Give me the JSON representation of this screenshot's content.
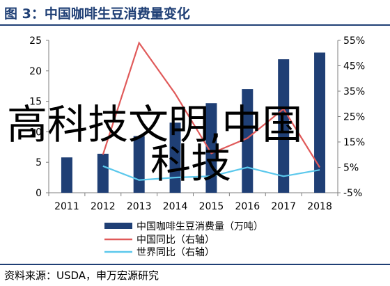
{
  "header": {
    "title": "图 3：中国咖啡生豆消费量变化"
  },
  "footer": {
    "source": "资料来源：USDA，申万宏源研究"
  },
  "watermark": {
    "line1": "高科技文明,中国",
    "line2": "科技"
  },
  "colors": {
    "bar": "#1f3f75",
    "china_line": "#e05a5a",
    "world_line": "#5bc8ec",
    "title": "#1f3f75",
    "axis": "#7f7f7f"
  },
  "chart_data": {
    "type": "bar",
    "categories": [
      "2011",
      "2012",
      "2013",
      "2014",
      "2015",
      "2016",
      "2017",
      "2018"
    ],
    "series": [
      {
        "name": "中国咖啡生豆消费量（万吨）",
        "type": "bar",
        "axis": "left",
        "values": [
          5.8,
          6.4,
          9.3,
          11.5,
          14.7,
          17.0,
          21.9,
          23.0
        ]
      },
      {
        "name": "中国同比（右轴）",
        "type": "line",
        "axis": "right",
        "values": [
          null,
          10.0,
          54.0,
          34.0,
          10.5,
          16.5,
          28.0,
          5.0
        ]
      },
      {
        "name": "世界同比（右轴）",
        "type": "line",
        "axis": "right",
        "values": [
          null,
          5.5,
          0.0,
          1.0,
          1.5,
          5.0,
          1.5,
          4.0
        ]
      }
    ],
    "left_axis": {
      "min": 0,
      "max": 25,
      "ticks": [
        "0",
        "5",
        "10",
        "15",
        "20",
        "25"
      ]
    },
    "right_axis": {
      "min": -5,
      "max": 55,
      "ticks": [
        "-5%",
        "5%",
        "15%",
        "25%",
        "35%",
        "45%",
        "55%"
      ]
    },
    "grid": false,
    "legend_position": "bottom"
  }
}
